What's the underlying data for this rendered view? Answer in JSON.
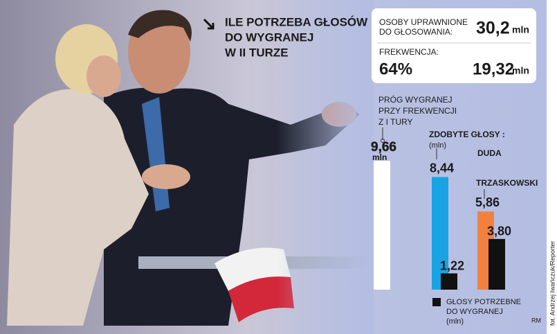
{
  "chart_data": {
    "type": "bar",
    "title": [
      "ILE POTRZEBA GŁOSÓW",
      "DO WYGRANEJ",
      "W II TURZE"
    ],
    "eligible": {
      "label": [
        "OSOBY UPRAWNIONE",
        "DO GŁOSOWANIA:"
      ],
      "value": 30.2,
      "value_label": "30,2"
    },
    "turnout": {
      "label": "FREKWENCJA:",
      "value": 64,
      "value_label": "64%",
      "votes": 19.32,
      "votes_label": "19,32"
    },
    "unit": "mln",
    "threshold": {
      "label": [
        "PRÓG WYGRANEJ",
        "PRZY FREKWENCJI",
        "Z I TURY"
      ],
      "value": 9.66,
      "value_label": "9,66",
      "color": "#ffffff"
    },
    "votes_title": "ZDOBYTE GŁOSY :",
    "votes_unit": "(mln)",
    "categories": [
      "DUDA",
      "TRZASKOWSKI"
    ],
    "series": [
      {
        "colors": [
          "#19a3e3",
          "#f2813f"
        ],
        "values": [
          8.44,
          5.86
        ],
        "value_labels": [
          "8,44",
          "5,86"
        ]
      },
      {
        "name": [
          "GŁOSY POTRZEBNE",
          "DO WYGRANEJ"
        ],
        "color": "#111111",
        "values": [
          1.22,
          3.8
        ],
        "value_labels": [
          "1,22",
          "3,80"
        ]
      }
    ],
    "author": "RM",
    "credit": "fot. Andrzej Iwańczuk/Reporter"
  }
}
